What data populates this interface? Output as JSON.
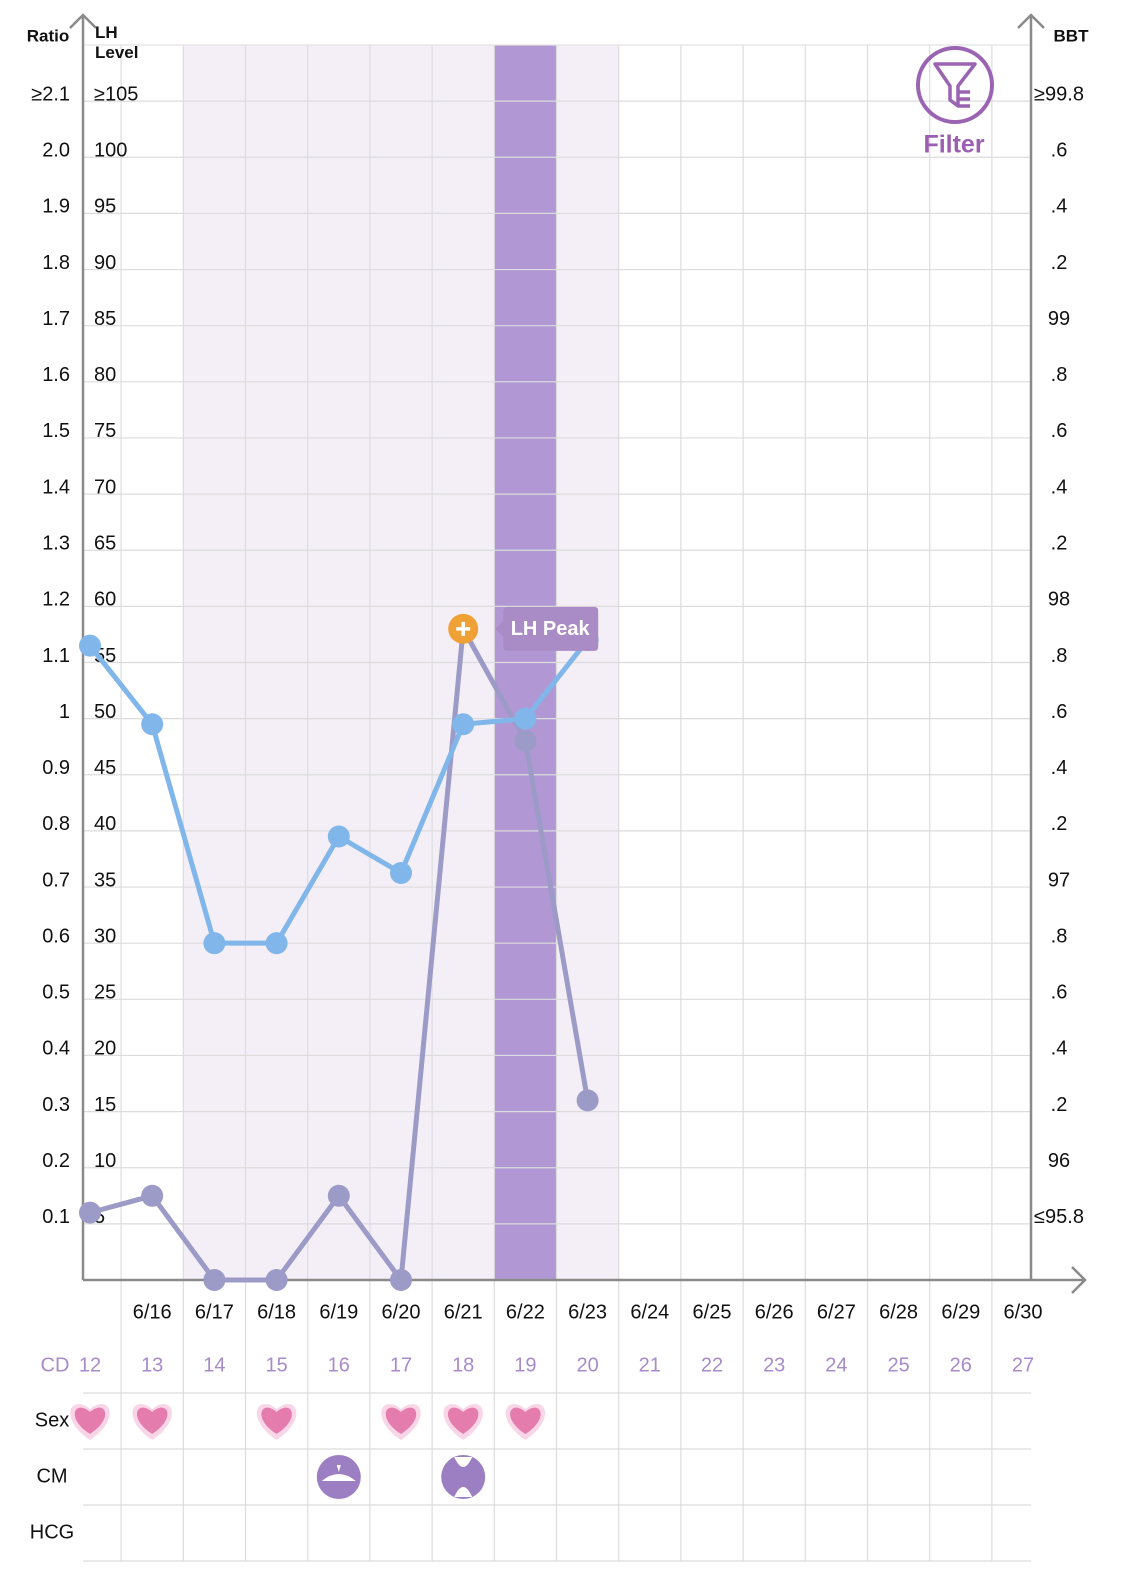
{
  "chart_data": {
    "type": "line",
    "y_axis_label": "Ratio",
    "lh_axis_label": "LH Level",
    "y2_axis_label": "BBT",
    "categories": [
      null,
      "6/16",
      "6/17",
      "6/18",
      "6/19",
      "6/20",
      "6/21",
      "6/22",
      "6/23",
      "6/24",
      "6/25",
      "6/26",
      "6/27",
      "6/28",
      "6/29",
      "6/30"
    ],
    "cycle_day_label": "CD",
    "cycle_days": [
      12,
      13,
      14,
      15,
      16,
      17,
      18,
      19,
      20,
      21,
      22,
      23,
      24,
      25,
      26,
      27
    ],
    "ylim": [
      0,
      2.2
    ],
    "yticks": [
      0.1,
      0.2,
      0.3,
      0.4,
      0.5,
      0.6,
      0.7,
      0.8,
      0.9,
      1,
      1.1,
      1.2,
      1.3,
      1.4,
      1.5,
      1.6,
      1.7,
      1.8,
      1.9,
      {
        "value": 2,
        "label": "2.0"
      },
      {
        "value": 2.1,
        "label": "≥2.1"
      }
    ],
    "lh_lim": [
      0,
      110
    ],
    "lh_ticks": [
      5,
      10,
      15,
      20,
      25,
      30,
      35,
      40,
      45,
      50,
      55,
      60,
      65,
      70,
      75,
      80,
      85,
      90,
      95,
      100,
      {
        "value": 105,
        "label": "≥105"
      }
    ],
    "y2lim": [
      95.6,
      100
    ],
    "y2ticks": [
      {
        "value": 95.8,
        "label": "≤95.8"
      },
      96,
      {
        "value": 96.2,
        "label": ".2"
      },
      {
        "value": 96.4,
        "label": ".4"
      },
      {
        "value": 96.6,
        "label": ".6"
      },
      {
        "value": 96.8,
        "label": ".8"
      },
      97,
      {
        "value": 97.2,
        "label": ".2"
      },
      {
        "value": 97.4,
        "label": ".4"
      },
      {
        "value": 97.6,
        "label": ".6"
      },
      {
        "value": 97.8,
        "label": ".8"
      },
      98,
      {
        "value": 98.2,
        "label": ".2"
      },
      {
        "value": 98.4,
        "label": ".4"
      },
      {
        "value": 98.6,
        "label": ".6"
      },
      {
        "value": 98.8,
        "label": ".8"
      },
      99,
      {
        "value": 99.2,
        "label": ".2"
      },
      {
        "value": 99.4,
        "label": ".4"
      },
      {
        "value": 99.6,
        "label": ".6"
      },
      {
        "value": 99.8,
        "label": "≥99.8"
      }
    ],
    "grid": true,
    "series": [
      {
        "color": "#9c9ac6",
        "values": [
          0.12,
          0.15,
          0,
          0,
          0.15,
          0,
          1.16,
          0.96,
          0.32,
          null,
          null,
          null,
          null,
          null,
          null,
          null
        ]
      },
      {
        "color": "#80b6e9",
        "axis": "y2",
        "values": [
          97.86,
          97.58,
          96.8,
          96.8,
          97.18,
          97.05,
          97.58,
          97.6,
          97.88,
          null,
          null,
          null,
          null,
          null,
          null,
          null
        ]
      }
    ],
    "bands": [
      {
        "from": 2,
        "to": 8,
        "color": "#f4eff7"
      },
      {
        "from": 7,
        "to": 7,
        "color": "#b198d4"
      }
    ],
    "annotation": {
      "text": "LH Peak",
      "series": 0,
      "index": 6,
      "color": "#f0a135"
    },
    "filter_label": "Filter",
    "logs": [
      {
        "label": "Sex",
        "days": [
          0,
          1,
          3,
          5,
          6,
          7
        ]
      },
      {
        "label": "CM",
        "days": [
          4,
          6
        ]
      },
      {
        "label": "HCG",
        "days": []
      }
    ]
  }
}
